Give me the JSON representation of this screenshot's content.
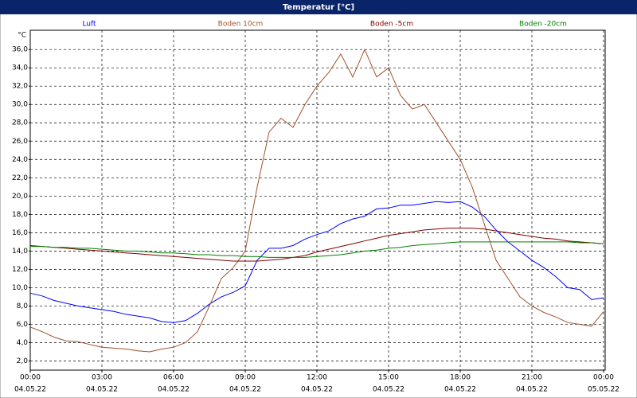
{
  "chart_data": {
    "type": "line",
    "title": "Temperatur [°C]",
    "y_unit": "°C",
    "xlim": [
      0,
      24
    ],
    "ylim": [
      1,
      38.1
    ],
    "xticks": [
      {
        "value": 0,
        "label": "00:00"
      },
      {
        "value": 3,
        "label": "03:00"
      },
      {
        "value": 6,
        "label": "06:00"
      },
      {
        "value": 9,
        "label": "09:00"
      },
      {
        "value": 12,
        "label": "12:00"
      },
      {
        "value": 15,
        "label": "15:00"
      },
      {
        "value": 18,
        "label": "18:00"
      },
      {
        "value": 21,
        "label": "21:00"
      },
      {
        "value": 24,
        "label": "00:00"
      }
    ],
    "xtick_dates": [
      "04.05.22",
      "04.05.22",
      "04.05.22",
      "04.05.22",
      "04.05.22",
      "04.05.22",
      "04.05.22",
      "04.05.22",
      "05.05.22"
    ],
    "yticks": [
      {
        "value": 2,
        "label": "2,0"
      },
      {
        "value": 4,
        "label": "4,0"
      },
      {
        "value": 6,
        "label": "6,0"
      },
      {
        "value": 8,
        "label": "8,0"
      },
      {
        "value": 10,
        "label": "10,0"
      },
      {
        "value": 12,
        "label": "12,0"
      },
      {
        "value": 14,
        "label": "14,0"
      },
      {
        "value": 16,
        "label": "16,0"
      },
      {
        "value": 18,
        "label": "18,0"
      },
      {
        "value": 20,
        "label": "20,0"
      },
      {
        "value": 22,
        "label": "22,0"
      },
      {
        "value": 24,
        "label": "24,0"
      },
      {
        "value": 26,
        "label": "26,0"
      },
      {
        "value": 28,
        "label": "28,0"
      },
      {
        "value": 30,
        "label": "30,0"
      },
      {
        "value": 32,
        "label": "32,0"
      },
      {
        "value": 34,
        "label": "34,0"
      },
      {
        "value": 36,
        "label": "36,0"
      }
    ],
    "grid": true,
    "x": [
      0,
      0.5,
      1,
      1.5,
      2,
      2.5,
      3,
      3.5,
      4,
      4.5,
      5,
      5.5,
      6,
      6.5,
      7,
      7.5,
      8,
      8.5,
      9,
      9.5,
      10,
      10.5,
      11,
      11.5,
      12,
      12.5,
      13,
      13.5,
      14,
      14.5,
      15,
      15.5,
      16,
      16.5,
      17,
      17.5,
      18,
      18.5,
      19,
      19.5,
      20,
      20.5,
      21,
      21.5,
      22,
      22.5,
      23,
      23.5,
      24
    ],
    "series": [
      {
        "name": "Luft",
        "color": "#0000ff",
        "values": [
          9.4,
          9.1,
          8.6,
          8.3,
          8.0,
          7.8,
          7.6,
          7.4,
          7.1,
          6.9,
          6.7,
          6.3,
          6.2,
          6.4,
          7.2,
          8.2,
          9.0,
          9.5,
          10.2,
          13.0,
          14.3,
          14.3,
          14.6,
          15.3,
          15.8,
          16.2,
          17.0,
          17.5,
          17.8,
          18.6,
          18.7,
          19.0,
          19.0,
          19.2,
          19.4,
          19.3,
          19.4,
          18.8,
          17.8,
          16.3,
          15.0,
          14.0,
          13.0,
          12.2,
          11.2,
          10.0,
          9.8,
          8.7,
          8.9
        ]
      },
      {
        "name": "Boden 10cm",
        "color": "#a0522d",
        "values": [
          5.7,
          5.2,
          4.6,
          4.2,
          4.1,
          3.8,
          3.5,
          3.4,
          3.3,
          3.1,
          3.0,
          3.3,
          3.5,
          4.0,
          5.2,
          8.0,
          11.0,
          12.2,
          14.0,
          21.0,
          27.0,
          28.5,
          27.5,
          30.0,
          32.0,
          33.5,
          35.5,
          33.0,
          36.0,
          33.0,
          34.0,
          31.0,
          29.5,
          30.0,
          28.0,
          26.0,
          24.0,
          21.0,
          17.0,
          13.0,
          11.0,
          9.0,
          8.0,
          7.3,
          6.8,
          6.2,
          6.0,
          5.8,
          7.4
        ]
      },
      {
        "name": "Boden -5cm",
        "color": "#800000",
        "values": [
          14.6,
          14.5,
          14.4,
          14.3,
          14.2,
          14.1,
          14.0,
          13.9,
          13.8,
          13.7,
          13.6,
          13.5,
          13.4,
          13.3,
          13.2,
          13.1,
          13.0,
          12.9,
          12.9,
          12.9,
          13.0,
          13.1,
          13.3,
          13.5,
          13.9,
          14.2,
          14.5,
          14.8,
          15.1,
          15.4,
          15.7,
          15.9,
          16.1,
          16.3,
          16.4,
          16.5,
          16.5,
          16.5,
          16.4,
          16.2,
          16.0,
          15.8,
          15.6,
          15.4,
          15.3,
          15.1,
          15.0,
          14.9,
          14.8
        ]
      },
      {
        "name": "Boden -20cm",
        "color": "#008000",
        "values": [
          14.5,
          14.5,
          14.4,
          14.4,
          14.3,
          14.3,
          14.2,
          14.1,
          14.0,
          14.0,
          13.9,
          13.8,
          13.8,
          13.7,
          13.6,
          13.6,
          13.5,
          13.5,
          13.4,
          13.4,
          13.3,
          13.3,
          13.3,
          13.3,
          13.4,
          13.5,
          13.6,
          13.8,
          14.0,
          14.1,
          14.3,
          14.4,
          14.6,
          14.7,
          14.8,
          14.9,
          15.0,
          15.0,
          15.0,
          15.0,
          15.0,
          15.0,
          15.0,
          15.0,
          15.0,
          15.0,
          14.9,
          14.9,
          14.8
        ]
      }
    ]
  }
}
